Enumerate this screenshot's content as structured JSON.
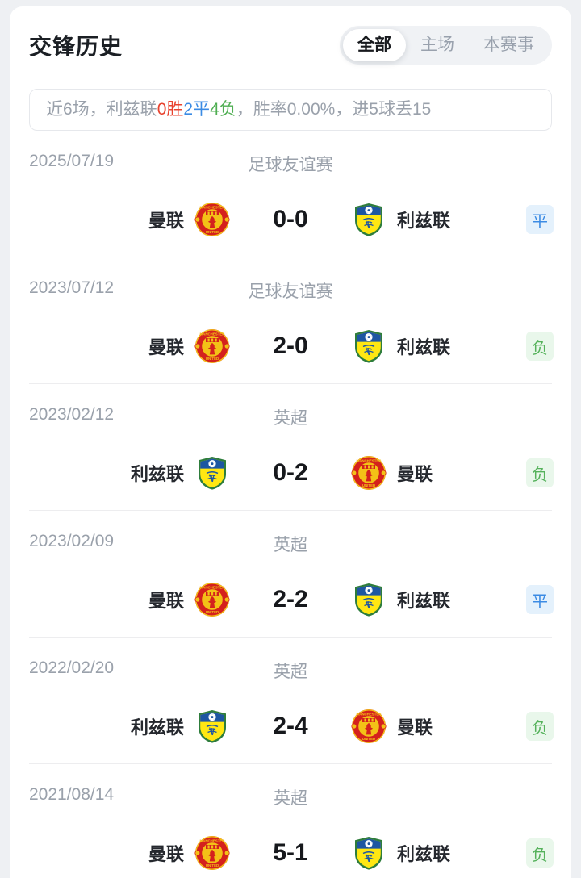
{
  "header": {
    "title": "交锋历史",
    "tabs": [
      {
        "label": "全部",
        "active": true
      },
      {
        "label": "主场",
        "active": false
      },
      {
        "label": "本赛事",
        "active": false
      }
    ]
  },
  "summary": {
    "prefix": "近6场，利兹联",
    "wins": "0胜",
    "draws": "2平",
    "losses": "4负",
    "suffix": "，胜率0.00%，进5球丢15"
  },
  "matches": [
    {
      "date": "2025/07/19",
      "competition": "足球友谊赛",
      "home": "曼联",
      "home_logo": "manutd",
      "score": "0-0",
      "away": "利兹联",
      "away_logo": "leeds",
      "result": "平",
      "result_type": "draw"
    },
    {
      "date": "2023/07/12",
      "competition": "足球友谊赛",
      "home": "曼联",
      "home_logo": "manutd",
      "score": "2-0",
      "away": "利兹联",
      "away_logo": "leeds",
      "result": "负",
      "result_type": "loss"
    },
    {
      "date": "2023/02/12",
      "competition": "英超",
      "home": "利兹联",
      "home_logo": "leeds",
      "score": "0-2",
      "away": "曼联",
      "away_logo": "manutd",
      "result": "负",
      "result_type": "loss"
    },
    {
      "date": "2023/02/09",
      "competition": "英超",
      "home": "曼联",
      "home_logo": "manutd",
      "score": "2-2",
      "away": "利兹联",
      "away_logo": "leeds",
      "result": "平",
      "result_type": "draw"
    },
    {
      "date": "2022/02/20",
      "competition": "英超",
      "home": "利兹联",
      "home_logo": "leeds",
      "score": "2-4",
      "away": "曼联",
      "away_logo": "manutd",
      "result": "负",
      "result_type": "loss"
    },
    {
      "date": "2021/08/14",
      "competition": "英超",
      "home": "曼联",
      "home_logo": "manutd",
      "score": "5-1",
      "away": "利兹联",
      "away_logo": "leeds",
      "result": "负",
      "result_type": "loss"
    }
  ],
  "colors": {
    "win_red": "#e8432f",
    "draw_blue": "#3b8be4",
    "loss_green": "#4fae52",
    "badge_draw_bg": "#e4f1fc",
    "badge_loss_bg": "#e9f7eb",
    "muted_text": "#9aa1ab",
    "page_bg": "#eef0f3",
    "card_bg": "#ffffff"
  }
}
